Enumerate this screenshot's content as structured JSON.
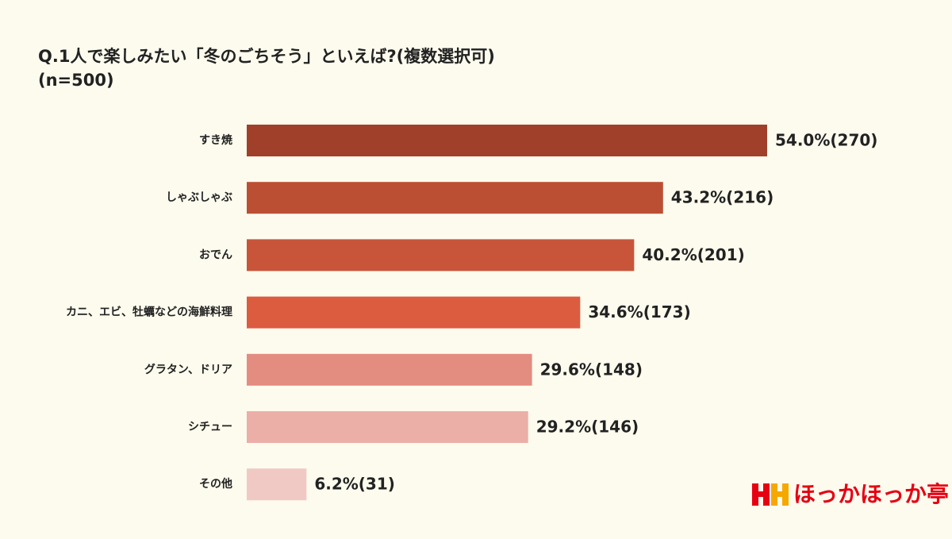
{
  "chart_data": {
    "type": "bar",
    "orientation": "horizontal",
    "title": "Q.1人で楽しみたい「冬のごちそう」といえば?(複数選択可)",
    "subtitle": "(n=500)",
    "categories": [
      "すき焼",
      "しゃぶしゃぶ",
      "おでん",
      "カニ、エビ、牡蠣などの海鮮料理",
      "グラタン、ドリア",
      "シチュー",
      "その他"
    ],
    "values": [
      54.0,
      43.2,
      40.2,
      34.6,
      29.6,
      29.2,
      6.2
    ],
    "value_labels": [
      "54.0%(270)",
      "43.2%(216)",
      "40.2%(201)",
      "34.6%(173)",
      "29.6%(148)",
      "29.2%(146)",
      "6.2%(31)"
    ],
    "colors": [
      "#a0402b",
      "#bb4f34",
      "#c8553a",
      "#dc5c40",
      "#e38c80",
      "#ebafa8",
      "#f0c9c5"
    ]
  },
  "logo": "ほっかほっか亭"
}
